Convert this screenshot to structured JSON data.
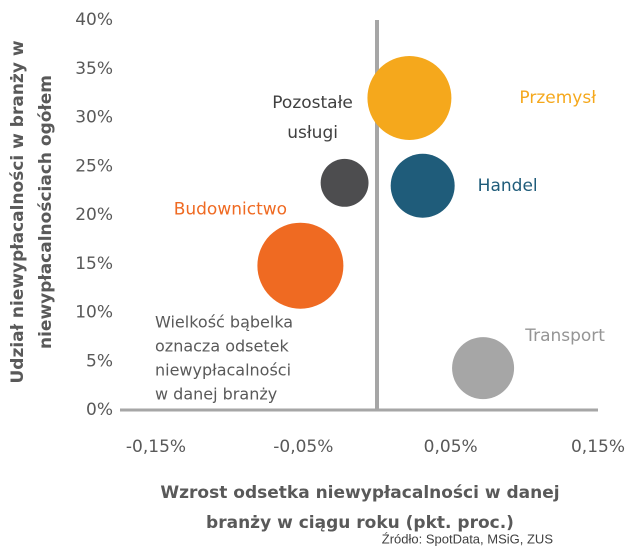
{
  "chart_data": {
    "type": "bubble",
    "xlabel": [
      "Wzrost odsetka niewypłacalności  w danej",
      "branży w ciągu roku (pkt. proc.)"
    ],
    "ylabel": [
      "Udział niewypłacalności  w branży w",
      "niewypłacalnościach  ogółem"
    ],
    "source": "Źródło: SpotData, MSiG, ZUS",
    "annotation": [
      "Wielkość bąbelka",
      "oznacza odsetek",
      "niewypłacalności",
      "w danej branży"
    ],
    "xlim": [
      -0.15,
      0.15
    ],
    "xticks": [
      {
        "value": -0.15,
        "label": "-0,15%"
      },
      {
        "value": -0.05,
        "label": "-0,05%"
      },
      {
        "value": 0.05,
        "label": "0,05%"
      },
      {
        "value": 0.15,
        "label": "0,15%"
      }
    ],
    "ylim": [
      0,
      40
    ],
    "yticks": [
      {
        "value": 0,
        "label": "0%"
      },
      {
        "value": 5,
        "label": "5%"
      },
      {
        "value": 10,
        "label": "10%"
      },
      {
        "value": 15,
        "label": "15%"
      },
      {
        "value": 20,
        "label": "20%"
      },
      {
        "value": 25,
        "label": "25%"
      },
      {
        "value": 30,
        "label": "30%"
      },
      {
        "value": 35,
        "label": "35%"
      },
      {
        "value": 40,
        "label": "40%"
      }
    ],
    "series": [
      {
        "name": "Przemysł",
        "color": "#F5A81C",
        "x": 0.022,
        "y": 32,
        "size": 28.6
      },
      {
        "name": "Handel",
        "color": "#1F5C7A",
        "x": 0.031,
        "y": 23,
        "size": 16.6
      },
      {
        "name": "Pozostałe usługi",
        "color": "#4D4D4F",
        "x": -0.022,
        "y": 23.3,
        "size": 9.3
      },
      {
        "name": "Budownictwo",
        "color": "#EF6A22",
        "x": -0.052,
        "y": 14.8,
        "size": 30
      },
      {
        "name": "Transport",
        "color": "#A6A6A6",
        "x": 0.072,
        "y": 4.3,
        "size": 15.6
      }
    ]
  }
}
